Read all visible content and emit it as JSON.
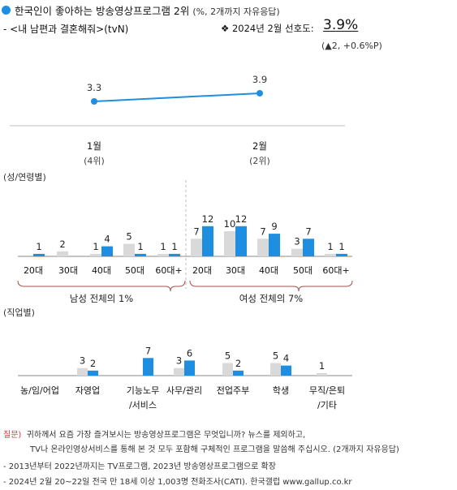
{
  "header": {
    "title": "한국인이 좋아하는 방송영상프로그램 2위",
    "title_note": "(%, 2개까지 자유응답)",
    "subtitle": "- <내 남편과 결혼해줘>(tvN)",
    "pref_label": "❖ 2024년 2월 선호도:",
    "pref_value": "3.9%",
    "pref_change": "(▲2, +0.6%P)"
  },
  "sections": {
    "gender_age": "(성/연령별)",
    "occupation": "(직업별)",
    "male_total": "남성 전체의 1%",
    "female_total": "여성 전체의 7%"
  },
  "footer": {
    "q_label": "질문)",
    "q_line1": "귀하께서 요즘 가장 즐겨보시는 방송영상프로그램은 무엇입니까? 뉴스를 제외하고,",
    "q_line2": "TV나 온라인영상서비스를 통해 본 것 모두 포함해 구체적인 프로그램을 말씀해 주십시오. (2개까지 자유응답)",
    "note1": "- 2013년부터 2022년까지는 TV프로그램, 2023년 방송영상프로그램으로 확장",
    "note2": "- 2024년 2월 20~22일 전국 만 18세 이상 1,003명 전화조사(CATI). 한국갤럽 www.gallup.co.kr"
  },
  "colors": {
    "accent": "#1e8ee0",
    "gray_bar": "#d9d9d9",
    "bracket": "#a05050"
  },
  "chart_data": [
    {
      "type": "line",
      "categories": [
        "1월",
        "2월"
      ],
      "category_notes": [
        "(4위)",
        "(2위)"
      ],
      "values": [
        3.3,
        3.9
      ],
      "data_labels": [
        "3.3",
        "3.9"
      ]
    },
    {
      "type": "bar",
      "categories": [
        "20대",
        "30대",
        "40대",
        "50대",
        "60대+",
        "20대",
        "30대",
        "40대",
        "50대",
        "60대+"
      ],
      "groups": [
        {
          "label": "남성 전체의 1%",
          "categories": [
            "20대",
            "30대",
            "40대",
            "50대",
            "60대+"
          ]
        },
        {
          "label": "여성 전체의 7%",
          "categories": [
            "20대",
            "30대",
            "40대",
            "50대",
            "60대+"
          ]
        }
      ],
      "series": [
        {
          "color": "#d9d9d9",
          "values": [
            null,
            2,
            1,
            5,
            1,
            7,
            10,
            7,
            3,
            1
          ],
          "labels": [
            "",
            "2",
            "1",
            "5",
            "1",
            "7",
            "10",
            "7",
            "3",
            "1"
          ]
        },
        {
          "color": "#1e8ee0",
          "values": [
            1,
            null,
            4,
            1,
            1,
            12,
            12,
            9,
            7,
            1
          ],
          "labels": [
            "1",
            "",
            "4",
            "1",
            "1",
            "12",
            "12",
            "9",
            "7",
            "1"
          ]
        }
      ]
    },
    {
      "type": "bar",
      "categories": [
        "농/임/어업",
        "자영업",
        "기능노무/서비스",
        "사무/관리",
        "전업주부",
        "학생",
        "무직/은퇴/기타"
      ],
      "category_lines": [
        [
          "농/임/어업"
        ],
        [
          "자영업"
        ],
        [
          "기능노무",
          "/서비스"
        ],
        [
          "사무/관리"
        ],
        [
          "전업주부"
        ],
        [
          "학생"
        ],
        [
          "무직/은퇴",
          "/기타"
        ]
      ],
      "series": [
        {
          "color": "#d9d9d9",
          "values": [
            null,
            3,
            null,
            3,
            5,
            5,
            1
          ],
          "labels": [
            "",
            "3",
            "",
            "3",
            "5",
            "5",
            "1"
          ]
        },
        {
          "color": "#1e8ee0",
          "values": [
            null,
            2,
            7,
            6,
            2,
            4,
            null
          ],
          "labels": [
            "",
            "2",
            "7",
            "6",
            "2",
            "4",
            ""
          ]
        }
      ]
    }
  ]
}
